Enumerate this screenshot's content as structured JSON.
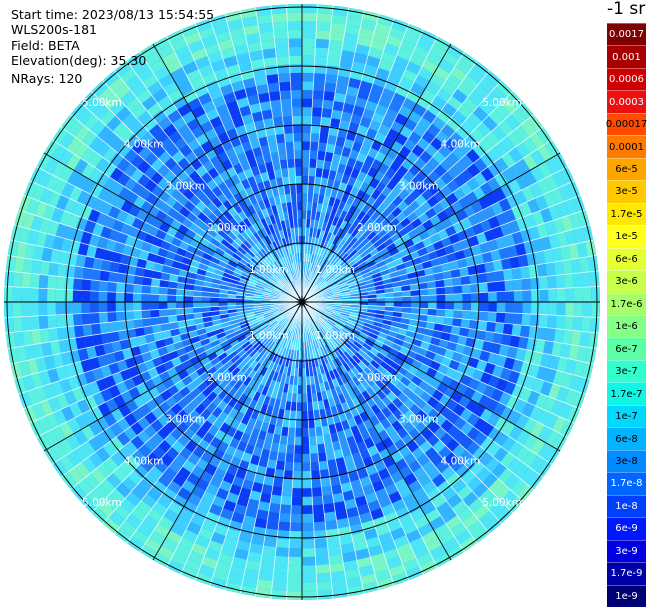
{
  "info": {
    "start_time": "Start time: 2023/08/13 15:54:55",
    "instrument": "WLS200s-181",
    "field": "Field: BETA",
    "elevation": "Elevation(deg): 35.30",
    "nrays": "NRays: 120"
  },
  "colorbar": {
    "title": "-1 sr",
    "levels": [
      {
        "label": "0.0017",
        "color": "#7f0000",
        "text": "#ffffff"
      },
      {
        "label": "0.001",
        "color": "#a60000",
        "text": "#ffffff"
      },
      {
        "label": "0.0006",
        "color": "#cc0000",
        "text": "#ffffff"
      },
      {
        "label": "0.0003",
        "color": "#ee1010",
        "text": "#ffffff"
      },
      {
        "label": "0.00017",
        "color": "#ff4a00",
        "text": "#000000"
      },
      {
        "label": "0.0001",
        "color": "#ff7a00",
        "text": "#000000"
      },
      {
        "label": "6e-5",
        "color": "#ffa500",
        "text": "#000000"
      },
      {
        "label": "3e-5",
        "color": "#ffc800",
        "text": "#000000"
      },
      {
        "label": "1.7e-5",
        "color": "#ffe800",
        "text": "#000000"
      },
      {
        "label": "1e-5",
        "color": "#ffff1a",
        "text": "#000000"
      },
      {
        "label": "6e-6",
        "color": "#e6ff33",
        "text": "#000000"
      },
      {
        "label": "3e-6",
        "color": "#c8ff4d",
        "text": "#000000"
      },
      {
        "label": "1.7e-6",
        "color": "#a6ff6a",
        "text": "#000000"
      },
      {
        "label": "1e-6",
        "color": "#86ff86",
        "text": "#000000"
      },
      {
        "label": "6e-7",
        "color": "#5cffa6",
        "text": "#000000"
      },
      {
        "label": "3e-7",
        "color": "#33ffcc",
        "text": "#000000"
      },
      {
        "label": "1.7e-7",
        "color": "#10f5e6",
        "text": "#000000"
      },
      {
        "label": "1e-7",
        "color": "#00d8ff",
        "text": "#000000"
      },
      {
        "label": "6e-8",
        "color": "#00b4ff",
        "text": "#000000"
      },
      {
        "label": "3e-8",
        "color": "#008cff",
        "text": "#000000"
      },
      {
        "label": "1.7e-8",
        "color": "#0066ff",
        "text": "#ffffff"
      },
      {
        "label": "1e-8",
        "color": "#0040ff",
        "text": "#ffffff"
      },
      {
        "label": "6e-9",
        "color": "#0018ff",
        "text": "#ffffff"
      },
      {
        "label": "3e-9",
        "color": "#0000e0",
        "text": "#ffffff"
      },
      {
        "label": "1.7e-9",
        "color": "#0000a8",
        "text": "#ffffff"
      },
      {
        "label": "1e-9",
        "color": "#000075",
        "text": "#ffffff"
      }
    ]
  },
  "range_labels": [
    "1.00km",
    "2.00km",
    "3.00km",
    "4.00km",
    "5.00km"
  ],
  "colors": {
    "grid": "#000000",
    "spoke": "#ffffff",
    "label": "#ffffff"
  }
}
